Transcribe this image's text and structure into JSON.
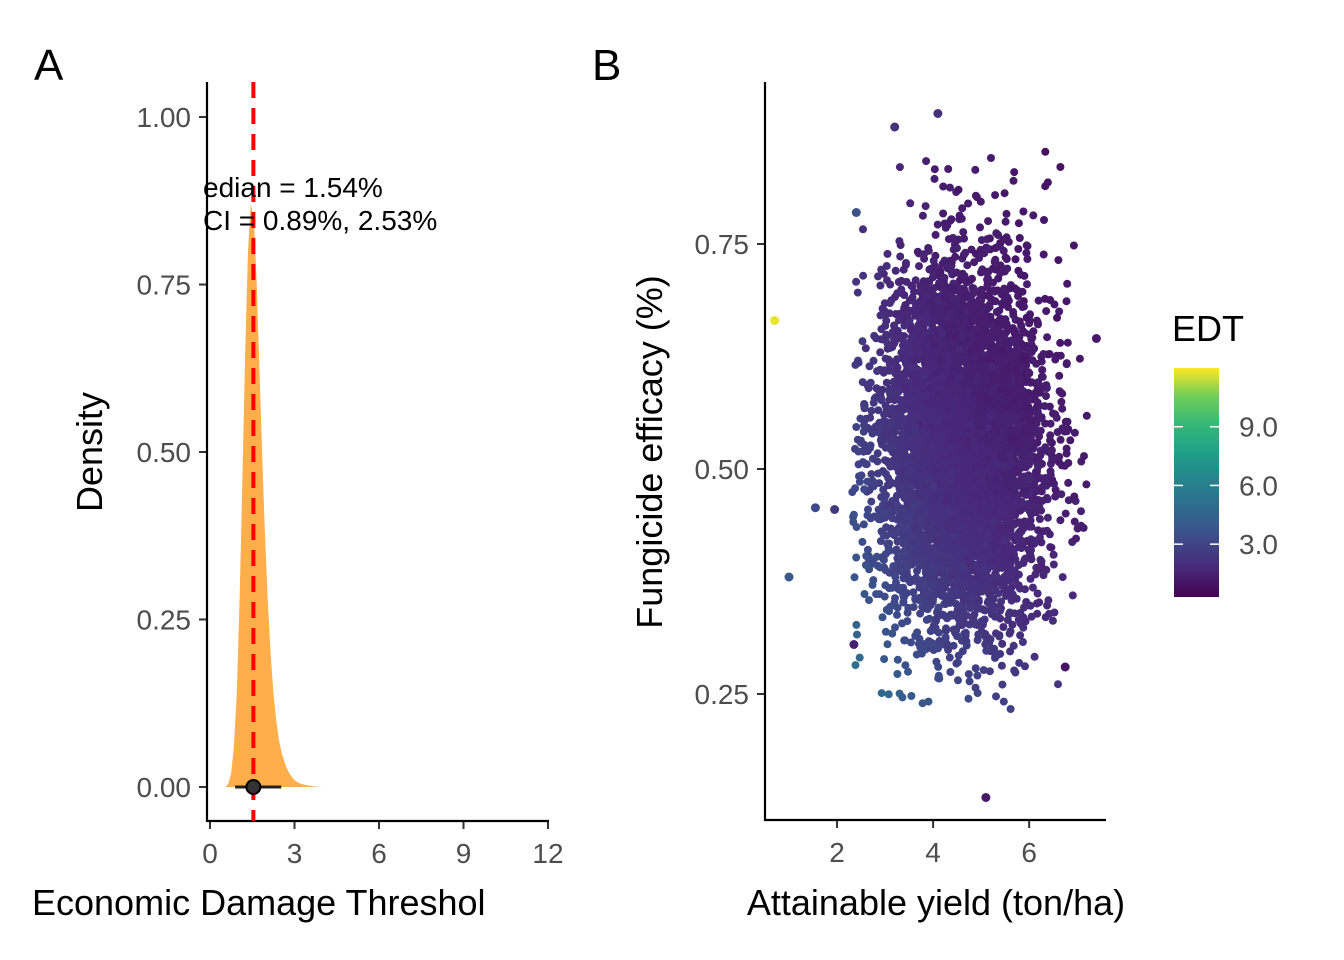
{
  "chart_data": [
    {
      "panel_tag": "A",
      "type": "area",
      "xlabel": "Economic Damage Threshol",
      "ylabel": "Density",
      "xlim": [
        -0.2,
        12
      ],
      "ylim": [
        -0.05,
        1.05
      ],
      "xticks": [
        0,
        3,
        6,
        9,
        12
      ],
      "yticks": [
        0.0,
        0.25,
        0.5,
        0.75,
        1.0
      ],
      "ytick_labels": [
        "0.00",
        "0.25",
        "0.50",
        "0.75",
        "1.00"
      ],
      "fill_color": "#FFAE4C",
      "density": {
        "x": [
          0.55,
          0.65,
          0.75,
          0.85,
          0.95,
          1.05,
          1.15,
          1.25,
          1.35,
          1.45,
          1.55,
          1.65,
          1.75,
          1.85,
          1.95,
          2.05,
          2.15,
          2.25,
          2.35,
          2.45,
          2.55,
          2.7,
          2.85,
          3.0,
          3.2,
          3.4,
          3.6,
          3.8,
          4.0
        ],
        "y": [
          0.0,
          0.005,
          0.02,
          0.06,
          0.14,
          0.28,
          0.46,
          0.65,
          0.8,
          0.87,
          0.85,
          0.76,
          0.63,
          0.5,
          0.38,
          0.28,
          0.2,
          0.14,
          0.1,
          0.07,
          0.05,
          0.03,
          0.018,
          0.01,
          0.005,
          0.003,
          0.0015,
          0.0006,
          0.0
        ]
      },
      "median_line": {
        "x": 1.54,
        "color": "#FF0000",
        "style": "dashed"
      },
      "interval": {
        "lower": 0.89,
        "upper": 2.53,
        "point": 1.54,
        "color": "#222222"
      },
      "annotation": [
        "edian = 1.54%",
        "CI = 0.89%, 2.53%"
      ]
    },
    {
      "panel_tag": "B",
      "type": "scatter",
      "xlabel": "Attainable yield (ton/ha)",
      "ylabel": "Fungicide efficacy (%)",
      "xlim": [
        0.5,
        7.6
      ],
      "ylim": [
        0.11,
        0.93
      ],
      "xticks": [
        2,
        4,
        6
      ],
      "yticks": [
        0.25,
        0.5,
        0.75
      ],
      "ytick_labels": [
        "0.25",
        "0.50",
        "0.75"
      ],
      "color_variable": "EDT",
      "colormap": "viridis",
      "cluster": {
        "x_mean": 4.6,
        "x_sd": 0.85,
        "y_mean": 0.52,
        "y_sd": 0.1,
        "n_points": 6000
      },
      "outliers": [
        {
          "x": 0.7,
          "y": 0.665,
          "EDT": 11.8
        },
        {
          "x": 1.0,
          "y": 0.38,
          "EDT": 4.0
        },
        {
          "x": 1.55,
          "y": 0.457,
          "EDT": 3.2
        },
        {
          "x": 1.95,
          "y": 0.455,
          "EDT": 2.5
        },
        {
          "x": 2.4,
          "y": 0.785,
          "EDT": 3.5
        },
        {
          "x": 3.2,
          "y": 0.88,
          "EDT": 2.2
        },
        {
          "x": 4.1,
          "y": 0.895,
          "EDT": 2.1
        },
        {
          "x": 5.1,
          "y": 0.135,
          "EDT": 1.2
        },
        {
          "x": 2.35,
          "y": 0.305,
          "EDT": 1.5
        },
        {
          "x": 7.4,
          "y": 0.645,
          "EDT": 1.2
        },
        {
          "x": 6.75,
          "y": 0.28,
          "EDT": 1.0
        }
      ],
      "legend": {
        "title": "EDT",
        "min": 0.3,
        "max": 12.0,
        "ticks": [
          3.0,
          6.0,
          9.0
        ],
        "tick_labels": [
          "3.0",
          "6.0",
          "9.0"
        ],
        "placement": "right"
      }
    }
  ]
}
